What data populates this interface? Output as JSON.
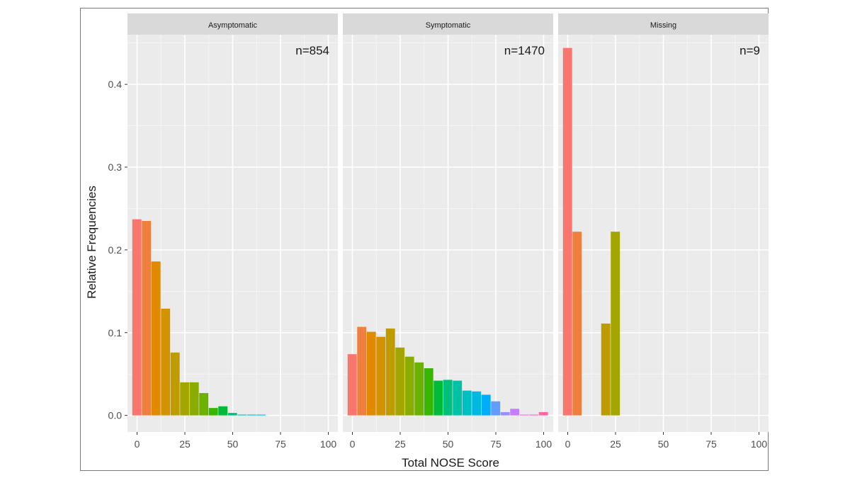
{
  "chart_data": {
    "type": "bar",
    "xlabel": "Total NOSE Score",
    "ylabel": "Relative Frequencies",
    "xlim": [
      -5,
      105
    ],
    "ylim": [
      -0.02,
      0.46
    ],
    "x_ticks": [
      0,
      25,
      50,
      75,
      100
    ],
    "y_ticks": [
      0.0,
      0.1,
      0.2,
      0.3,
      0.4
    ],
    "y_tick_labels": [
      "0.0",
      "0.1",
      "0.2",
      "0.3",
      "0.4"
    ],
    "x_tick_labels": [
      "0",
      "25",
      "50",
      "75",
      "100"
    ],
    "bin_width": 5,
    "grid": true,
    "legend": "none",
    "colors": [
      "#F8766D",
      "#EF7F3E",
      "#E18A00",
      "#D39200",
      "#BE9C00",
      "#A3A500",
      "#8AAB00",
      "#6BB100",
      "#39B600",
      "#00BA38",
      "#00BF7D",
      "#00C1A3",
      "#00BFC4",
      "#00B9E3",
      "#00ADFA",
      "#619CFF",
      "#9590FF",
      "#C77CFF",
      "#E76BF3",
      "#FF61C3",
      "#FF67A4"
    ],
    "panels": [
      {
        "strip": "Asymptomatic",
        "n_label": "n=854",
        "x": [
          0,
          5,
          10,
          15,
          20,
          25,
          30,
          35,
          40,
          45,
          50,
          55,
          60,
          65,
          70,
          75,
          80,
          85,
          90,
          95,
          100
        ],
        "values": [
          0.237,
          0.235,
          0.186,
          0.129,
          0.076,
          0.04,
          0.04,
          0.027,
          0.009,
          0.011,
          0.003,
          0.001,
          0.001,
          0.001,
          0,
          0,
          0,
          0,
          0,
          0,
          0
        ]
      },
      {
        "strip": "Symptomatic",
        "n_label": "n=1470",
        "x": [
          0,
          5,
          10,
          15,
          20,
          25,
          30,
          35,
          40,
          45,
          50,
          55,
          60,
          65,
          70,
          75,
          80,
          85,
          90,
          95,
          100
        ],
        "values": [
          0.074,
          0.107,
          0.101,
          0.095,
          0.105,
          0.082,
          0.071,
          0.064,
          0.057,
          0.042,
          0.043,
          0.042,
          0.03,
          0.029,
          0.025,
          0.017,
          0.004,
          0.008,
          0.001,
          0.001,
          0.004
        ]
      },
      {
        "strip": "Missing",
        "n_label": "n=9",
        "x": [
          0,
          5,
          10,
          15,
          20,
          25,
          30,
          35,
          40,
          45,
          50,
          55,
          60,
          65,
          70,
          75,
          80,
          85,
          90,
          95,
          100
        ],
        "values": [
          0.444,
          0.222,
          0,
          0,
          0.111,
          0.222,
          0,
          0,
          0,
          0,
          0,
          0,
          0,
          0,
          0,
          0,
          0,
          0,
          0,
          0,
          0
        ]
      }
    ]
  }
}
